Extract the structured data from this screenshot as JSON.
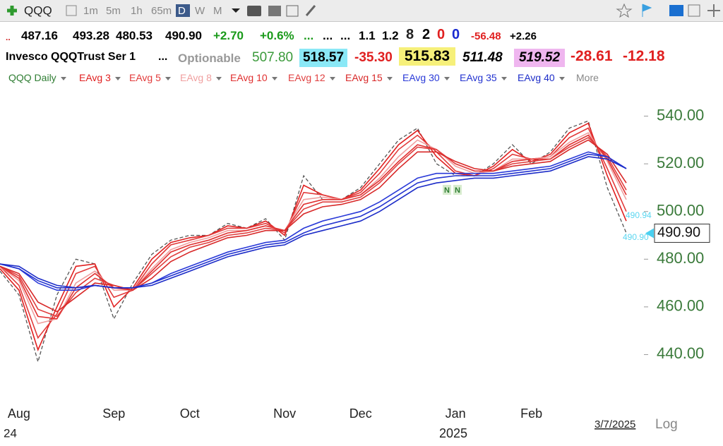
{
  "toolbar": {
    "symbol": "QQQ",
    "intervals": [
      "1m",
      "5m",
      "1h",
      "65m",
      "D",
      "W",
      "M"
    ]
  },
  "quote_row": {
    "items": [
      "..",
      "487.16",
      "493.28",
      "480.53",
      "490.90",
      "+2.70",
      "+0.6%",
      "...",
      "...",
      "...",
      "1.1",
      "1.2",
      "8",
      "2",
      "0",
      "0",
      "-56.48",
      "+2.26"
    ]
  },
  "info_row": {
    "name": "Invesco QQQTrust Ser 1",
    "more": "...",
    "optionable": "Optionable",
    "values": [
      "507.80",
      "518.57",
      "-35.30",
      "515.83",
      "511.48",
      "519.52",
      "-28.61",
      "-12.18"
    ]
  },
  "chart_data": {
    "type": "line",
    "categories": [
      null,
      "Aug",
      null,
      null,
      null,
      null,
      "Sep",
      null,
      null,
      null,
      "Oct",
      null,
      null,
      null,
      null,
      "Nov",
      null,
      null,
      null,
      "Dec",
      null,
      null,
      null,
      null,
      "Jan",
      null,
      null,
      null,
      "Feb",
      null,
      null,
      null,
      null,
      null
    ],
    "series": [
      {
        "name": "QQQ Daily",
        "color": "#555555",
        "dashed": true,
        "values": [
          475,
          465,
          437,
          465,
          480,
          478,
          455,
          470,
          482,
          488,
          490,
          490,
          495,
          493,
          497,
          488,
          515,
          505,
          505,
          510,
          520,
          530,
          535,
          520,
          515,
          515,
          520,
          528,
          520,
          525,
          535,
          538,
          510,
          491
        ]
      },
      {
        "name": "EAvg 3",
        "color": "#e02020",
        "values": [
          476,
          467,
          442,
          460,
          477,
          478,
          460,
          468,
          480,
          487,
          489,
          490,
          494,
          493,
          496,
          490,
          511,
          507,
          505,
          509,
          518,
          528,
          534,
          523,
          516,
          515,
          519,
          526,
          521,
          524,
          533,
          537,
          515,
          496
        ]
      },
      {
        "name": "EAvg 5",
        "color": "#e23a3a",
        "values": [
          477,
          469,
          447,
          457,
          474,
          477,
          464,
          467,
          478,
          486,
          488,
          490,
          493,
          493,
          495,
          491,
          508,
          507,
          505,
          508,
          516,
          526,
          532,
          525,
          517,
          515,
          518,
          524,
          522,
          523,
          531,
          535,
          518,
          500
        ]
      },
      {
        "name": "EAvg 8",
        "color": "#f0a0a0",
        "values": [
          477,
          471,
          453,
          455,
          470,
          475,
          467,
          467,
          476,
          484,
          487,
          489,
          492,
          492,
          494,
          492,
          505,
          506,
          505,
          507,
          514,
          523,
          530,
          526,
          519,
          516,
          517,
          522,
          522,
          523,
          529,
          533,
          521,
          505
        ]
      },
      {
        "name": "EAvg 10",
        "color": "#e03030",
        "values": [
          477,
          472,
          456,
          455,
          468,
          474,
          468,
          467,
          475,
          483,
          486,
          488,
          491,
          492,
          494,
          492,
          503,
          505,
          505,
          507,
          513,
          521,
          528,
          526,
          520,
          517,
          517,
          521,
          522,
          522,
          528,
          532,
          522,
          507
        ]
      },
      {
        "name": "EAvg 12",
        "color": "#e04040",
        "values": [
          477,
          473,
          459,
          456,
          466,
          472,
          469,
          467,
          474,
          481,
          485,
          487,
          490,
          491,
          493,
          492,
          501,
          504,
          504,
          506,
          512,
          520,
          527,
          526,
          520,
          517,
          517,
          520,
          521,
          522,
          527,
          531,
          523,
          509
        ]
      },
      {
        "name": "EAvg 15",
        "color": "#d82828",
        "values": [
          477,
          474,
          462,
          458,
          464,
          470,
          469,
          467,
          472,
          479,
          483,
          486,
          489,
          490,
          492,
          492,
          499,
          502,
          503,
          505,
          510,
          518,
          525,
          525,
          521,
          518,
          517,
          519,
          520,
          521,
          526,
          530,
          524,
          512
        ]
      },
      {
        "name": "EAvg 30",
        "color": "#2a3ad8",
        "values": [
          478,
          476,
          470,
          467,
          467,
          469,
          468,
          468,
          470,
          474,
          477,
          480,
          483,
          485,
          487,
          488,
          493,
          496,
          498,
          500,
          504,
          509,
          514,
          516,
          516,
          516,
          516,
          517,
          518,
          519,
          522,
          525,
          523,
          518
        ]
      },
      {
        "name": "EAvg 35",
        "color": "#2434d0",
        "values": [
          478,
          476,
          471,
          468,
          468,
          469,
          468,
          468,
          470,
          473,
          476,
          479,
          482,
          484,
          486,
          487,
          491,
          494,
          496,
          498,
          502,
          507,
          512,
          514,
          515,
          515,
          515,
          516,
          517,
          518,
          521,
          524,
          523,
          518
        ]
      },
      {
        "name": "EAvg 40",
        "color": "#1c2cc8",
        "values": [
          478,
          477,
          472,
          469,
          468,
          469,
          468,
          468,
          469,
          472,
          475,
          478,
          481,
          483,
          485,
          486,
          490,
          492,
          494,
          496,
          500,
          505,
          510,
          512,
          513,
          514,
          514,
          515,
          516,
          517,
          520,
          523,
          522,
          518
        ]
      }
    ],
    "legend_more": "More",
    "ylim": [
      420,
      560
    ],
    "yticks": [
      {
        "value": 440,
        "label": "440.00"
      },
      {
        "value": 460,
        "label": "460.00"
      },
      {
        "value": 480,
        "label": "480.00"
      },
      {
        "value": 500,
        "label": "500.00"
      },
      {
        "value": 520,
        "label": "520.00"
      },
      {
        "value": 540,
        "label": "540.00"
      }
    ],
    "last_price": {
      "value": 490.9,
      "label": "490.90"
    },
    "annotations": [
      "490.94",
      "490.90"
    ],
    "markers": [
      "N",
      "N"
    ],
    "year_labels": [
      "24",
      "2025"
    ],
    "date": "3/7/2025",
    "log_button": "Log"
  }
}
